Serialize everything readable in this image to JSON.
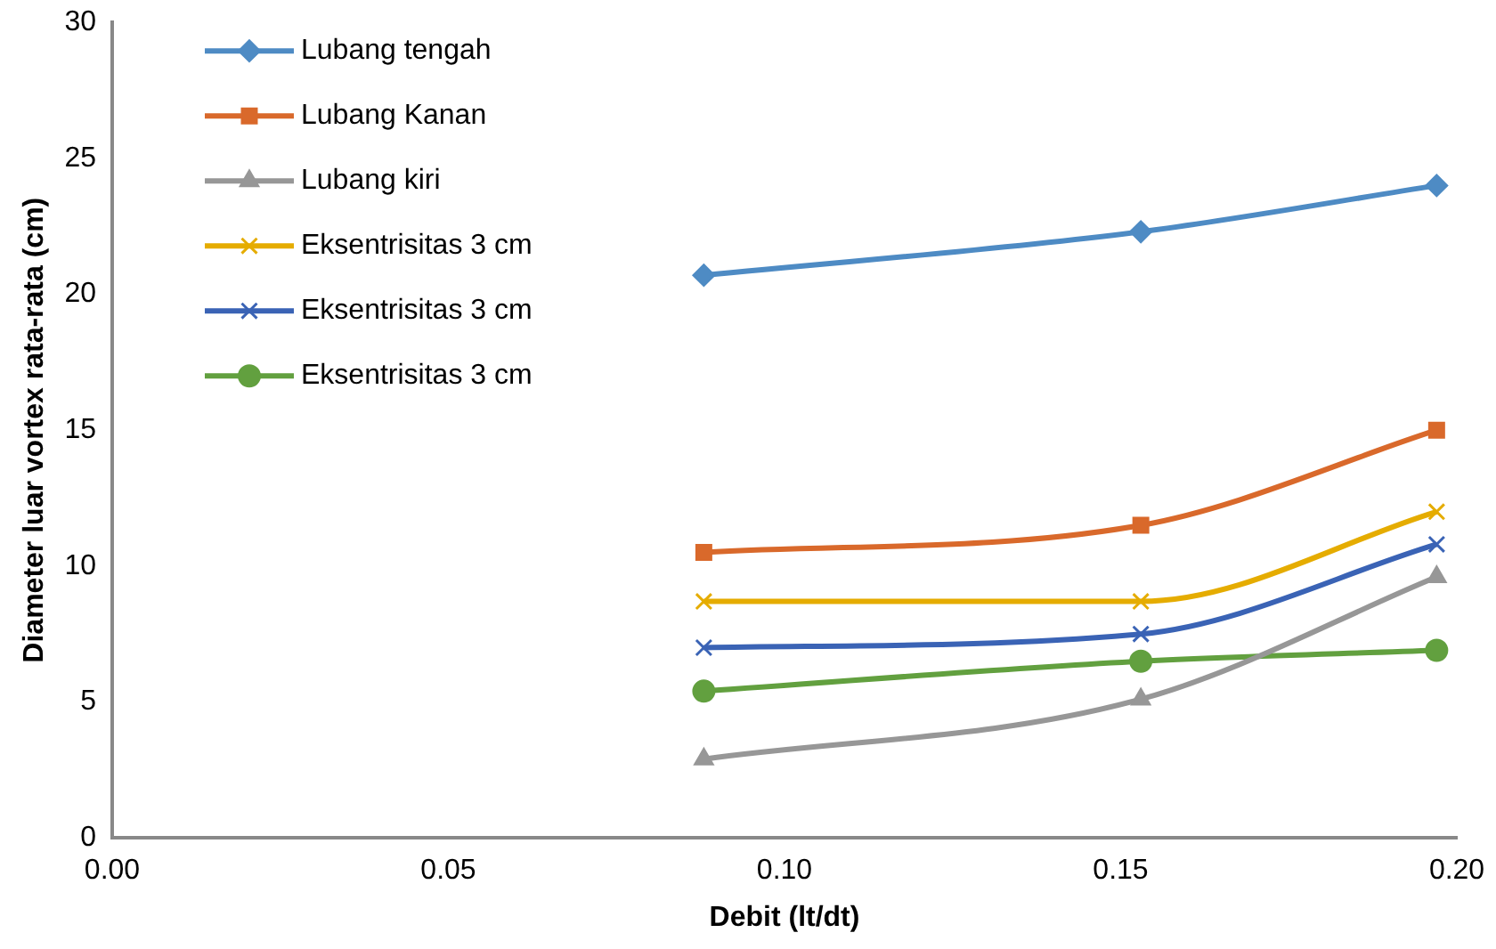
{
  "chart_data": {
    "type": "line",
    "xlabel": "Debit (lt/dt)",
    "ylabel": "Diameter luar vortex rata-rata (cm)",
    "x": [
      0.088,
      0.153,
      0.197
    ],
    "xlim": [
      0,
      0.2
    ],
    "xticks": [
      {
        "value": 0,
        "label": "0.00"
      },
      {
        "value": 0.05,
        "label": "0.05"
      },
      {
        "value": 0.1,
        "label": "0.10"
      },
      {
        "value": 0.15,
        "label": "0.15"
      },
      {
        "value": 0.2,
        "label": "0.20"
      }
    ],
    "ylim": [
      0,
      30
    ],
    "yticks": [
      0,
      5,
      10,
      15,
      20,
      25,
      30
    ],
    "grid": false,
    "legend": "top left",
    "series": [
      {
        "name": "Lubang tengah",
        "color": "#4e8bc4",
        "marker": "diamond",
        "values": [
          20.7,
          22.3,
          24.0
        ]
      },
      {
        "name": "Lubang Kanan",
        "color": "#d9692b",
        "marker": "square",
        "values": [
          10.5,
          11.5,
          15.0
        ]
      },
      {
        "name": "Lubang kiri",
        "color": "#979797",
        "marker": "triangle",
        "values": [
          2.9,
          5.1,
          9.6
        ]
      },
      {
        "name": "Eksentrisitas 3 cm",
        "color": "#e5ac00",
        "marker": "cross",
        "values": [
          8.7,
          8.7,
          12.0
        ]
      },
      {
        "name": "Eksentrisitas 3 cm",
        "color": "#3a63b5",
        "marker": "cross",
        "values": [
          7.0,
          7.5,
          10.8
        ]
      },
      {
        "name": "Eksentrisitas 3 cm",
        "color": "#62a03f",
        "marker": "circle",
        "values": [
          5.4,
          6.5,
          6.9
        ]
      }
    ]
  }
}
